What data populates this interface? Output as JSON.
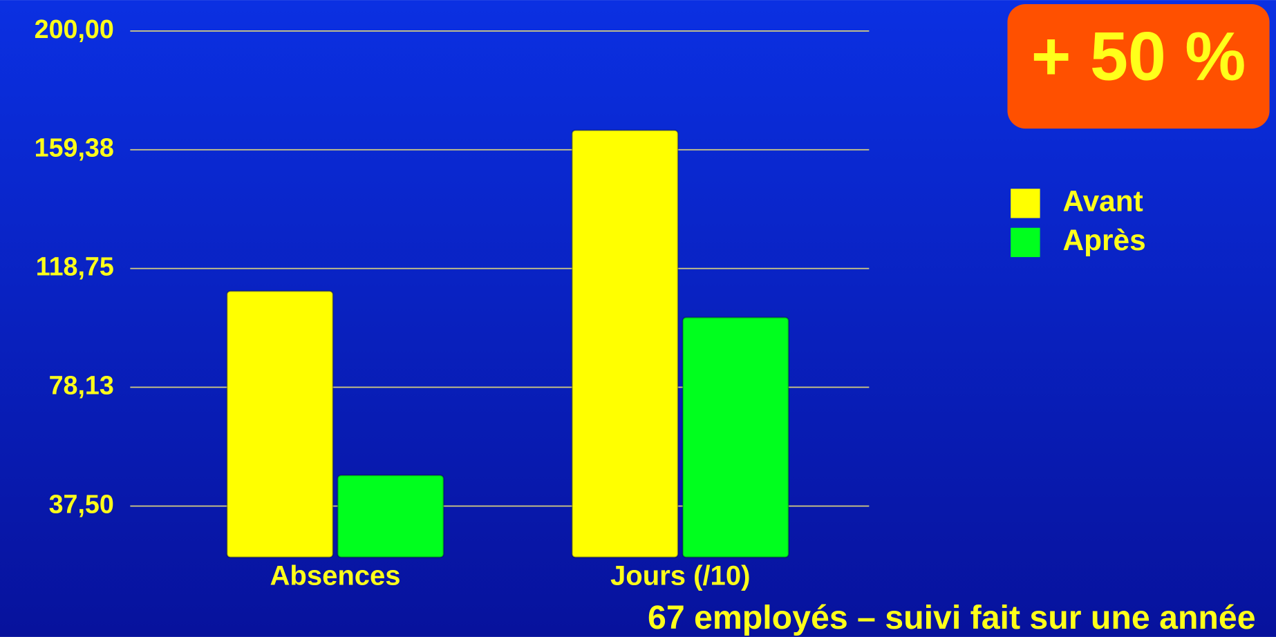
{
  "chart_data": {
    "type": "bar",
    "categories": [
      "Absences",
      "Jours (/10)"
    ],
    "series": [
      {
        "name": "Avant",
        "color": "#ffff00",
        "values": [
          111,
          166
        ]
      },
      {
        "name": "Après",
        "color": "#00ff1e",
        "values": [
          48,
          102
        ]
      }
    ],
    "ylim": [
      20,
      200
    ],
    "yticks": [
      {
        "value": 37.5,
        "label": "37,50"
      },
      {
        "value": 78.13,
        "label": "78,13"
      },
      {
        "value": 118.75,
        "label": "118,75"
      },
      {
        "value": 159.38,
        "label": "159,38"
      },
      {
        "value": 200,
        "label": "200,00"
      }
    ],
    "grid": true,
    "legend": "right",
    "annotations": [
      "+ 50 %",
      "67 employés – suivi fait sur une année"
    ]
  }
}
